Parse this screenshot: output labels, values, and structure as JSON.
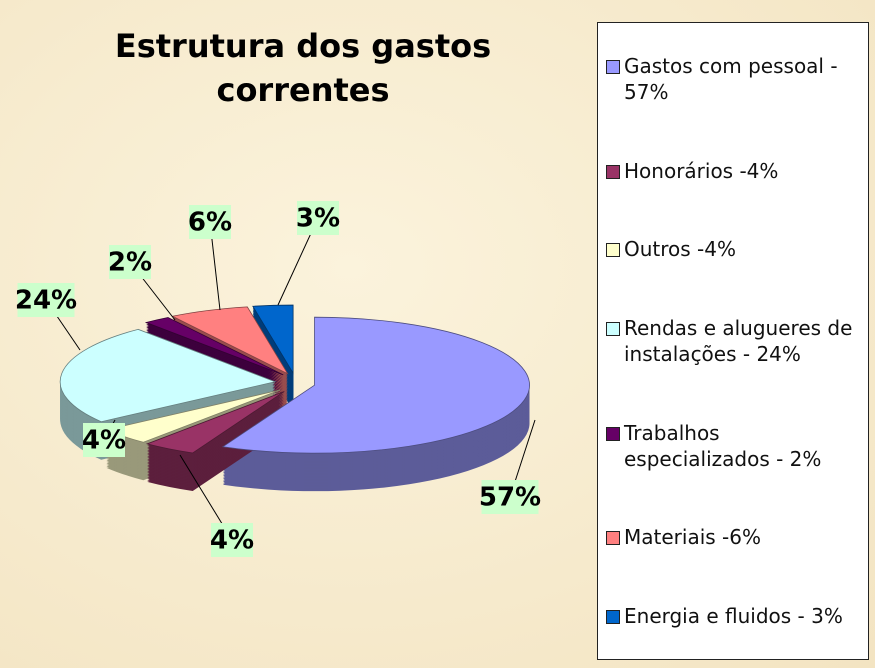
{
  "chart_data": {
    "type": "pie",
    "title": [
      "Estrutura dos gastos",
      "correntes"
    ],
    "categories": [
      "Gastos com pessoal - 57%",
      "Honorários -4%",
      "Outros -4%",
      "Rendas e alugueres de instalações - 24%",
      "Trabalhos especializados - 2%",
      "Materiais -6%",
      "Energia e fluidos - 3%"
    ],
    "values": [
      57,
      4,
      4,
      24,
      2,
      6,
      3
    ],
    "value_labels": [
      "57%",
      "4%",
      "4%",
      "24%",
      "2%",
      "6%",
      "3%"
    ],
    "colors": [
      "#9999ff",
      "#993366",
      "#ffffcc",
      "#ccffff",
      "#660066",
      "#ff8080",
      "#0066cc"
    ],
    "legend": "right"
  }
}
